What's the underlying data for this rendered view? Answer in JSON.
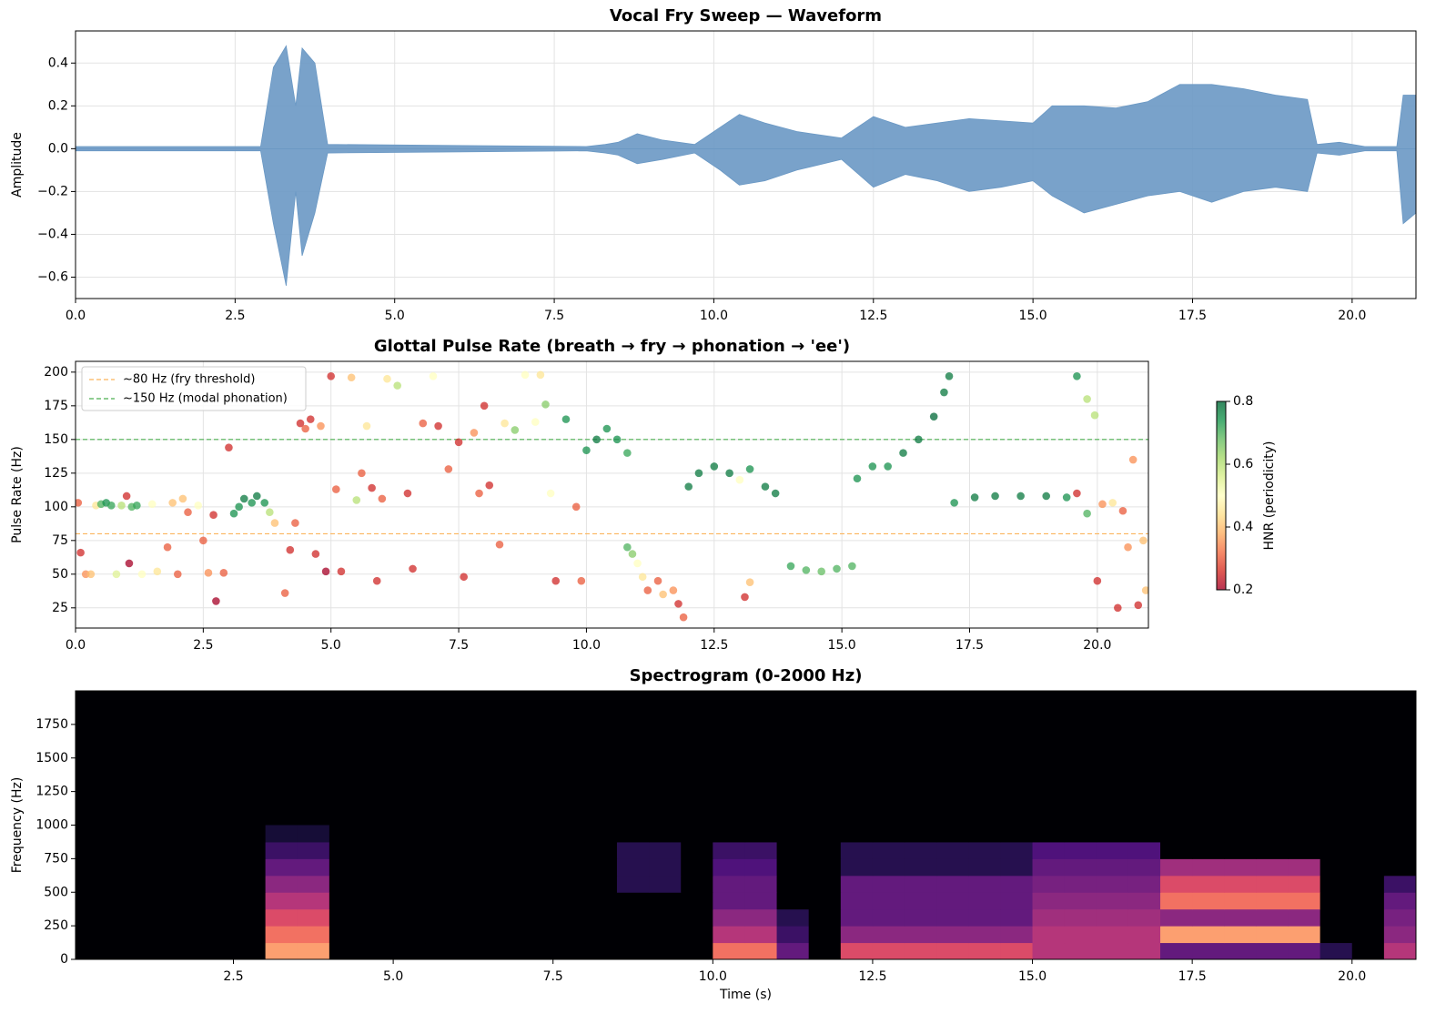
{
  "chart_data": [
    {
      "type": "area",
      "title": "Vocal Fry Sweep — Waveform",
      "ylabel": "Amplitude",
      "x": [
        0,
        2.9,
        3.1,
        3.3,
        3.45,
        3.55,
        3.75,
        3.95,
        8.0,
        8.3,
        8.5,
        8.8,
        9.2,
        9.7,
        10.1,
        10.4,
        10.8,
        11.3,
        12.0,
        12.5,
        13.0,
        13.5,
        14.0,
        14.5,
        15.0,
        15.3,
        15.8,
        16.3,
        16.8,
        17.3,
        17.8,
        18.3,
        18.8,
        19.3,
        19.45,
        19.8,
        20.2,
        20.7,
        20.8,
        21.0
      ],
      "series": [
        {
          "color": "#6a98c4",
          "values": [
            0.01,
            0.01,
            0.38,
            0.48,
            0.2,
            0.47,
            0.4,
            0.02,
            0.01,
            0.02,
            0.03,
            0.07,
            0.04,
            0.02,
            0.1,
            0.16,
            0.12,
            0.08,
            0.05,
            0.15,
            0.1,
            0.12,
            0.14,
            0.13,
            0.12,
            0.2,
            0.2,
            0.19,
            0.22,
            0.3,
            0.3,
            0.28,
            0.25,
            0.23,
            0.02,
            0.03,
            0.01,
            0.01,
            0.25,
            0.25
          ]
        },
        {
          "color": "#6a98c4",
          "values": [
            -0.01,
            -0.01,
            -0.35,
            -0.64,
            -0.2,
            -0.5,
            -0.3,
            -0.02,
            -0.01,
            -0.02,
            -0.03,
            -0.07,
            -0.05,
            -0.02,
            -0.1,
            -0.17,
            -0.15,
            -0.1,
            -0.05,
            -0.18,
            -0.12,
            -0.15,
            -0.2,
            -0.18,
            -0.15,
            -0.22,
            -0.3,
            -0.26,
            -0.22,
            -0.2,
            -0.25,
            -0.2,
            -0.18,
            -0.2,
            -0.02,
            -0.03,
            -0.01,
            -0.01,
            -0.35,
            -0.3
          ]
        }
      ],
      "xlim": [
        0,
        21
      ],
      "ylim": [
        -0.7,
        0.55
      ],
      "xticks": [
        {
          "value": 0,
          "label": "0.0"
        },
        2.5,
        {
          "value": 5,
          "label": "5.0"
        },
        7.5,
        {
          "value": 10,
          "label": "10.0"
        },
        12.5,
        {
          "value": 15,
          "label": "15.0"
        },
        17.5,
        {
          "value": 20,
          "label": "20.0"
        }
      ],
      "yticks": [
        {
          "value": -0.6,
          "label": "−0.6"
        },
        {
          "value": -0.4,
          "label": "−0.4"
        },
        {
          "value": -0.2,
          "label": "−0.2"
        },
        {
          "value": 0,
          "label": "0.0"
        },
        0.2,
        0.4
      ],
      "grid": true
    },
    {
      "type": "scatter",
      "title": "Glottal Pulse Rate (breath → fry → phonation → 'ee')",
      "ylabel": "Pulse Rate (Hz)",
      "x": [
        0.05,
        0.1,
        0.2,
        0.3,
        0.4,
        0.5,
        0.6,
        0.7,
        0.8,
        0.9,
        1.0,
        1.05,
        1.1,
        1.2,
        1.3,
        1.5,
        1.6,
        1.8,
        1.9,
        2.0,
        2.1,
        2.2,
        2.4,
        2.5,
        2.6,
        2.7,
        2.75,
        2.9,
        3.0,
        3.1,
        3.2,
        3.3,
        3.45,
        3.55,
        3.7,
        3.8,
        3.9,
        4.1,
        4.2,
        4.3,
        4.4,
        4.5,
        4.6,
        4.7,
        4.8,
        4.9,
        5.0,
        5.1,
        5.2,
        5.4,
        5.5,
        5.6,
        5.7,
        5.8,
        5.9,
        6.0,
        6.1,
        6.3,
        6.5,
        6.6,
        6.8,
        7.0,
        7.1,
        7.3,
        7.5,
        7.6,
        7.8,
        7.9,
        8.0,
        8.1,
        8.3,
        8.4,
        8.6,
        8.8,
        9.0,
        9.1,
        9.2,
        9.3,
        9.4,
        9.6,
        9.8,
        9.9,
        10.0,
        10.2,
        10.4,
        10.6,
        10.8,
        10.8,
        10.9,
        11.0,
        11.1,
        11.2,
        11.4,
        11.5,
        11.7,
        11.8,
        11.9,
        12.0,
        12.2,
        12.5,
        12.8,
        13.0,
        13.2,
        13.5,
        13.7,
        13.2,
        13.1,
        14.0,
        14.3,
        14.6,
        14.9,
        15.2,
        15.3,
        15.6,
        15.9,
        16.2,
        16.5,
        16.8,
        17.0,
        17.1,
        17.2,
        17.6,
        18.0,
        18.5,
        19.0,
        19.4,
        19.6,
        19.8,
        19.6,
        19.8,
        19.95,
        20.0,
        20.1,
        20.3,
        20.4,
        20.5,
        20.6,
        20.7,
        20.8,
        20.9,
        20.95
      ],
      "y": [
        103,
        66,
        50,
        50,
        101,
        102,
        103,
        101,
        50,
        101,
        108,
        58,
        100,
        101,
        50,
        102,
        52,
        70,
        103,
        50,
        106,
        96,
        101,
        75,
        51,
        94,
        30,
        51,
        144,
        95,
        100,
        106,
        103,
        108,
        103,
        96,
        88,
        36,
        68,
        88,
        162,
        158,
        165,
        65,
        160,
        52,
        197,
        113,
        52,
        196,
        105,
        125,
        160,
        114,
        45,
        106,
        195,
        190,
        110,
        54,
        162,
        197,
        160,
        128,
        148,
        48,
        155,
        110,
        175,
        116,
        72,
        162,
        157,
        198,
        163,
        198,
        176,
        110,
        45,
        165,
        100,
        45,
        142,
        150,
        158,
        150,
        140,
        70,
        65,
        58,
        48,
        38,
        45,
        35,
        38,
        28,
        18,
        115,
        125,
        130,
        125,
        120,
        128,
        115,
        110,
        44,
        33,
        56,
        53,
        52,
        54,
        56,
        121,
        130,
        130,
        140,
        150,
        167,
        185,
        197,
        103,
        107,
        108,
        108,
        108,
        107,
        110,
        95,
        197,
        180,
        168,
        45,
        102,
        103,
        25,
        97,
        70,
        135,
        27,
        75,
        38
      ],
      "hnr": [
        0.3,
        0.25,
        0.35,
        0.4,
        0.45,
        0.7,
        0.75,
        0.72,
        0.55,
        0.6,
        0.25,
        0.2,
        0.7,
        0.72,
        0.5,
        0.5,
        0.45,
        0.3,
        0.4,
        0.3,
        0.4,
        0.3,
        0.5,
        0.3,
        0.35,
        0.25,
        0.2,
        0.3,
        0.25,
        0.75,
        0.75,
        0.78,
        0.75,
        0.78,
        0.75,
        0.6,
        0.4,
        0.3,
        0.25,
        0.3,
        0.25,
        0.3,
        0.25,
        0.25,
        0.35,
        0.2,
        0.25,
        0.3,
        0.25,
        0.4,
        0.6,
        0.3,
        0.45,
        0.25,
        0.25,
        0.3,
        0.45,
        0.6,
        0.25,
        0.25,
        0.3,
        0.5,
        0.25,
        0.3,
        0.25,
        0.25,
        0.35,
        0.3,
        0.25,
        0.25,
        0.3,
        0.45,
        0.65,
        0.5,
        0.5,
        0.45,
        0.65,
        0.5,
        0.25,
        0.75,
        0.3,
        0.3,
        0.75,
        0.78,
        0.75,
        0.75,
        0.72,
        0.7,
        0.65,
        0.5,
        0.45,
        0.3,
        0.3,
        0.4,
        0.35,
        0.25,
        0.3,
        0.78,
        0.78,
        0.78,
        0.78,
        0.5,
        0.75,
        0.78,
        0.78,
        0.4,
        0.25,
        0.72,
        0.7,
        0.68,
        0.7,
        0.7,
        0.75,
        0.75,
        0.75,
        0.78,
        0.78,
        0.8,
        0.78,
        0.78,
        0.75,
        0.78,
        0.78,
        0.78,
        0.78,
        0.75,
        0.25,
        0.7,
        0.75,
        0.6,
        0.6,
        0.25,
        0.35,
        0.45,
        0.25,
        0.3,
        0.35,
        0.35,
        0.25,
        0.4,
        0.4
      ],
      "colormap": [
        "#a50026",
        "#d73027",
        "#f46d43",
        "#fdae61",
        "#fee08b",
        "#ffffbf",
        "#d9ef8b",
        "#a6d96a",
        "#66bd63",
        "#1a9850",
        "#006837"
      ],
      "colorbar": {
        "label": "HNR (periodicity)",
        "lim": [
          0.2,
          0.8
        ],
        "ticks": [
          0.2,
          0.4,
          0.6,
          0.8
        ]
      },
      "hlines": [
        {
          "y": 80,
          "label": "~80 Hz (fry threshold)",
          "color": "#fbb55c"
        },
        {
          "y": 150,
          "label": "~150 Hz (modal phonation)",
          "color": "#4caf50"
        }
      ],
      "legend": "upper left",
      "xlim": [
        0,
        21
      ],
      "ylim": [
        10,
        208
      ],
      "xticks": [
        {
          "value": 0,
          "label": "0.0"
        },
        2.5,
        {
          "value": 5,
          "label": "5.0"
        },
        7.5,
        {
          "value": 10,
          "label": "10.0"
        },
        12.5,
        {
          "value": 15,
          "label": "15.0"
        },
        17.5,
        {
          "value": 20,
          "label": "20.0"
        }
      ],
      "yticks": [
        25,
        50,
        75,
        100,
        125,
        150,
        175,
        200
      ],
      "grid": true
    },
    {
      "type": "heatmap",
      "title": "Spectrogram (0-2000 Hz)",
      "xlabel": "Time (s)",
      "ylabel": "Frequency (Hz)",
      "xbins": [
        0,
        0.5,
        1,
        1.5,
        2,
        2.5,
        3,
        3.5,
        4,
        4.5,
        5,
        5.5,
        6,
        6.5,
        7,
        7.5,
        8,
        8.5,
        9,
        9.5,
        10,
        10.5,
        11,
        11.5,
        12,
        12.5,
        13,
        13.5,
        14,
        14.5,
        15,
        15.5,
        16,
        16.5,
        17,
        17.5,
        18,
        18.5,
        19,
        19.5,
        20,
        20.5,
        21
      ],
      "ybins": [
        0,
        125,
        250,
        375,
        500,
        625,
        750,
        875,
        1000
      ],
      "z": [
        [
          0,
          0,
          0,
          0,
          0,
          0,
          0.8,
          0.8,
          0,
          0,
          0,
          0,
          0,
          0,
          0,
          0,
          0,
          0,
          0,
          0,
          0.7,
          0.7,
          0.3,
          0,
          0.6,
          0.6,
          0.6,
          0.6,
          0.6,
          0.6,
          0.5,
          0.5,
          0.5,
          0.5,
          0.3,
          0.3,
          0.3,
          0.3,
          0.3,
          0.15,
          0,
          0.5
        ],
        [
          0,
          0,
          0,
          0,
          0,
          0,
          0.7,
          0.7,
          0,
          0,
          0,
          0,
          0,
          0,
          0,
          0,
          0,
          0,
          0,
          0,
          0.5,
          0.5,
          0.2,
          0,
          0.4,
          0.4,
          0.4,
          0.4,
          0.4,
          0.4,
          0.5,
          0.5,
          0.5,
          0.5,
          0.8,
          0.8,
          0.8,
          0.8,
          0.8,
          0,
          0,
          0.4
        ],
        [
          0,
          0,
          0,
          0,
          0,
          0,
          0.6,
          0.6,
          0,
          0,
          0,
          0,
          0,
          0,
          0,
          0,
          0,
          0,
          0,
          0,
          0.4,
          0.4,
          0.15,
          0,
          0.3,
          0.3,
          0.3,
          0.3,
          0.3,
          0.3,
          0.45,
          0.45,
          0.45,
          0.45,
          0.4,
          0.4,
          0.4,
          0.4,
          0.4,
          0,
          0,
          0.35
        ],
        [
          0,
          0,
          0,
          0,
          0,
          0,
          0.5,
          0.5,
          0,
          0,
          0,
          0,
          0,
          0,
          0,
          0,
          0,
          0,
          0,
          0,
          0.3,
          0.3,
          0,
          0,
          0.3,
          0.3,
          0.3,
          0.3,
          0.3,
          0.3,
          0.4,
          0.4,
          0.4,
          0.4,
          0.7,
          0.7,
          0.7,
          0.7,
          0.7,
          0,
          0,
          0.3
        ],
        [
          0,
          0,
          0,
          0,
          0,
          0,
          0.4,
          0.4,
          0,
          0,
          0,
          0,
          0,
          0,
          0,
          0,
          0,
          0.15,
          0.15,
          0,
          0.3,
          0.3,
          0,
          0,
          0.3,
          0.3,
          0.3,
          0.3,
          0.3,
          0.3,
          0.35,
          0.35,
          0.35,
          0.35,
          0.6,
          0.6,
          0.6,
          0.6,
          0.6,
          0,
          0,
          0.2
        ],
        [
          0,
          0,
          0,
          0,
          0,
          0,
          0.3,
          0.3,
          0,
          0,
          0,
          0,
          0,
          0,
          0,
          0,
          0,
          0.15,
          0.15,
          0,
          0.25,
          0.25,
          0,
          0,
          0.15,
          0.15,
          0.15,
          0.15,
          0.15,
          0.15,
          0.3,
          0.3,
          0.3,
          0.3,
          0.45,
          0.45,
          0.45,
          0.45,
          0.45,
          0,
          0,
          0
        ],
        [
          0,
          0,
          0,
          0,
          0,
          0,
          0.2,
          0.2,
          0,
          0,
          0,
          0,
          0,
          0,
          0,
          0,
          0,
          0.15,
          0.15,
          0,
          0.2,
          0.2,
          0,
          0,
          0.15,
          0.15,
          0.15,
          0.15,
          0.15,
          0.15,
          0.25,
          0.25,
          0.25,
          0.25,
          0,
          0,
          0,
          0,
          0,
          0,
          0,
          0
        ],
        [
          0,
          0,
          0,
          0,
          0,
          0,
          0.1,
          0.1,
          0,
          0,
          0,
          0,
          0,
          0,
          0,
          0,
          0,
          0,
          0,
          0,
          0,
          0,
          0,
          0,
          0,
          0,
          0,
          0,
          0,
          0,
          0,
          0,
          0,
          0,
          0,
          0,
          0,
          0,
          0,
          0,
          0,
          0
        ]
      ],
      "colormap": [
        "#000004",
        "#1c1044",
        "#4f127b",
        "#812581",
        "#b5367a",
        "#e55064",
        "#fb8761",
        "#fec287",
        "#fcfdbf"
      ],
      "xlim": [
        0.03,
        21
      ],
      "ylim": [
        0,
        2000
      ],
      "xticks": [
        2.5,
        {
          "value": 5,
          "label": "5.0"
        },
        7.5,
        {
          "value": 10,
          "label": "10.0"
        },
        12.5,
        {
          "value": 15,
          "label": "15.0"
        },
        17.5,
        {
          "value": 20,
          "label": "20.0"
        }
      ],
      "yticks": [
        0,
        250,
        500,
        750,
        1000,
        1250,
        1500,
        1750
      ]
    }
  ]
}
